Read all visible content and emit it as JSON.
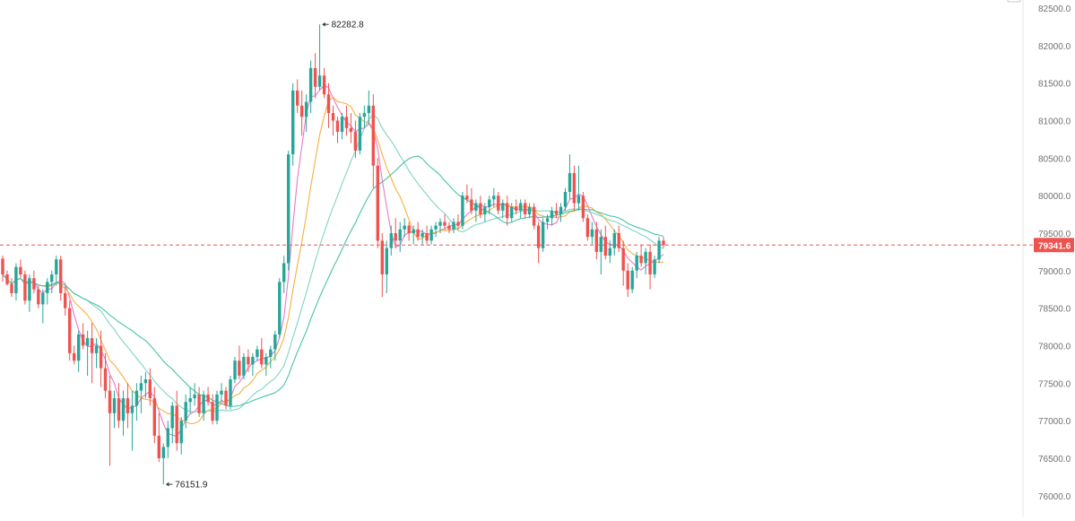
{
  "chart_data": {
    "type": "candlestick",
    "y_axis": {
      "position": "right",
      "ticks": [
        82500.0,
        82000.0,
        81500.0,
        81000.0,
        80500.0,
        80000.0,
        79500.0,
        79000.0,
        78500.0,
        78000.0,
        77500.0,
        77000.0,
        76500.0,
        76000.0
      ],
      "tick_labels": [
        "82500.0",
        "82000.0",
        "81500.0",
        "81000.0",
        "80500.0",
        "80000.0",
        "79500.0",
        "79000.0",
        "78500.0",
        "78000.0",
        "77500.0",
        "77000.0",
        "76500.0",
        "76000.0"
      ],
      "ylim": [
        75950,
        82560
      ]
    },
    "grid": false,
    "current_price": {
      "value": 79341.6,
      "label": "79341.6",
      "line_style": "dashed"
    },
    "high_marker": {
      "value": 82282.8,
      "label": "82282.8"
    },
    "low_marker": {
      "value": 76151.9,
      "label": "76151.9"
    },
    "colors": {
      "up": "#26a69a",
      "down": "#ef5350",
      "price_line": "#ef5350",
      "price_tag": "#ef5350"
    },
    "ma_lines": [
      {
        "color": "#e879c8"
      },
      {
        "color": "#f5b041"
      },
      {
        "color": "#7fd4c4"
      },
      {
        "color": "#45c4a6"
      }
    ],
    "ohlc": [
      [
        79160,
        79200,
        78850,
        78950
      ],
      [
        78950,
        79000,
        78800,
        78820
      ],
      [
        78820,
        78900,
        78650,
        78700
      ],
      [
        78700,
        79100,
        78600,
        79050
      ],
      [
        79050,
        79150,
        78900,
        78950
      ],
      [
        78950,
        79000,
        78550,
        78600
      ],
      [
        78600,
        78950,
        78450,
        78900
      ],
      [
        78900,
        79000,
        78700,
        78750
      ],
      [
        78750,
        78800,
        78500,
        78550
      ],
      [
        78550,
        78750,
        78300,
        78700
      ],
      [
        78700,
        78900,
        78550,
        78850
      ],
      [
        78850,
        79000,
        78700,
        78950
      ],
      [
        78950,
        79200,
        78800,
        79150
      ],
      [
        79150,
        79200,
        78600,
        78700
      ],
      [
        78700,
        78800,
        78400,
        78500
      ],
      [
        78500,
        78600,
        77800,
        77900
      ],
      [
        77900,
        78000,
        77750,
        77800
      ],
      [
        77800,
        78200,
        77650,
        78150
      ],
      [
        78150,
        78300,
        77950,
        78000
      ],
      [
        78000,
        78200,
        77600,
        78100
      ],
      [
        78100,
        78300,
        77500,
        77900
      ],
      [
        77900,
        78100,
        77700,
        78000
      ],
      [
        78000,
        78200,
        77450,
        77700
      ],
      [
        77700,
        77900,
        77300,
        77400
      ],
      [
        77400,
        77600,
        76400,
        77100
      ],
      [
        77100,
        77400,
        76900,
        77300
      ],
      [
        77300,
        77500,
        76900,
        77000
      ],
      [
        77000,
        77400,
        76800,
        77300
      ],
      [
        77300,
        77500,
        76900,
        77100
      ],
      [
        77100,
        77400,
        76600,
        77200
      ],
      [
        77200,
        77500,
        77000,
        77400
      ],
      [
        77400,
        77600,
        77100,
        77500
      ],
      [
        77500,
        77650,
        77300,
        77550
      ],
      [
        77550,
        77700,
        77200,
        77300
      ],
      [
        77300,
        77450,
        76700,
        76800
      ],
      [
        76800,
        77100,
        76450,
        76500
      ],
      [
        76500,
        76700,
        76152,
        76650
      ],
      [
        76650,
        77000,
        76500,
        76900
      ],
      [
        76900,
        77250,
        76700,
        77200
      ],
      [
        77200,
        77400,
        76600,
        76700
      ],
      [
        76700,
        77050,
        76550,
        77000
      ],
      [
        77000,
        77350,
        76900,
        77250
      ],
      [
        77250,
        77450,
        77100,
        77300
      ],
      [
        77300,
        77500,
        77200,
        77350
      ],
      [
        77350,
        77450,
        77050,
        77100
      ],
      [
        77100,
        77400,
        77000,
        77350
      ],
      [
        77350,
        77450,
        77200,
        77250
      ],
      [
        77250,
        77350,
        76950,
        77000
      ],
      [
        77000,
        77400,
        76950,
        77350
      ],
      [
        77350,
        77500,
        77250,
        77400
      ],
      [
        77400,
        77450,
        77150,
        77200
      ],
      [
        77200,
        77600,
        77150,
        77550
      ],
      [
        77550,
        77850,
        77500,
        77800
      ],
      [
        77800,
        78000,
        77550,
        77600
      ],
      [
        77600,
        77900,
        77550,
        77850
      ],
      [
        77850,
        77950,
        77650,
        77750
      ],
      [
        77750,
        77900,
        77600,
        77850
      ],
      [
        77850,
        78000,
        77800,
        77950
      ],
      [
        77950,
        78100,
        77700,
        77750
      ],
      [
        77750,
        77900,
        77600,
        77850
      ],
      [
        77850,
        78000,
        77700,
        77950
      ],
      [
        77950,
        78200,
        77800,
        78150
      ],
      [
        78150,
        78900,
        78100,
        78850
      ],
      [
        78850,
        79200,
        78700,
        79100
      ],
      [
        79100,
        80600,
        79000,
        80550
      ],
      [
        80550,
        81500,
        80400,
        81400
      ],
      [
        81400,
        81550,
        81100,
        81200
      ],
      [
        81200,
        81400,
        80800,
        81050
      ],
      [
        81050,
        81350,
        80850,
        81250
      ],
      [
        81250,
        81800,
        81100,
        81700
      ],
      [
        81700,
        81900,
        81300,
        81450
      ],
      [
        81450,
        82283,
        81400,
        81600
      ],
      [
        81600,
        81700,
        81300,
        81350
      ],
      [
        81350,
        81500,
        80900,
        81100
      ],
      [
        81100,
        81200,
        80800,
        81000
      ],
      [
        81000,
        81050,
        80700,
        80850
      ],
      [
        80850,
        81100,
        80750,
        81050
      ],
      [
        81050,
        81200,
        80800,
        80900
      ],
      [
        80900,
        81100,
        80700,
        80850
      ],
      [
        80850,
        81000,
        80500,
        80600
      ],
      [
        80600,
        81100,
        80550,
        81050
      ],
      [
        81050,
        81200,
        80900,
        81100
      ],
      [
        81100,
        81400,
        80950,
        81200
      ],
      [
        81200,
        81350,
        80100,
        80400
      ],
      [
        80400,
        80500,
        79300,
        79400
      ],
      [
        79400,
        79500,
        78650,
        78950
      ],
      [
        78950,
        79400,
        78700,
        79300
      ],
      [
        79300,
        79600,
        79200,
        79500
      ],
      [
        79500,
        79700,
        79300,
        79400
      ],
      [
        79400,
        79650,
        79250,
        79550
      ],
      [
        79550,
        79700,
        79450,
        79600
      ],
      [
        79600,
        79650,
        79400,
        79500
      ],
      [
        79500,
        79600,
        79350,
        79550
      ],
      [
        79550,
        79650,
        79400,
        79450
      ],
      [
        79450,
        79550,
        79350,
        79500
      ],
      [
        79500,
        79600,
        79350,
        79400
      ],
      [
        79400,
        79600,
        79350,
        79550
      ],
      [
        79550,
        79650,
        79450,
        79600
      ],
      [
        79600,
        79700,
        79500,
        79650
      ],
      [
        79650,
        79750,
        79550,
        79600
      ],
      [
        79600,
        79650,
        79500,
        79550
      ],
      [
        79550,
        79700,
        79500,
        79650
      ],
      [
        79650,
        79750,
        79550,
        79600
      ],
      [
        79600,
        80050,
        79550,
        80000
      ],
      [
        80000,
        80150,
        79900,
        79950
      ],
      [
        79950,
        80100,
        79750,
        79800
      ],
      [
        79800,
        79950,
        79650,
        79900
      ],
      [
        79900,
        80000,
        79700,
        79750
      ],
      [
        79750,
        79900,
        79650,
        79850
      ],
      [
        79850,
        80000,
        79750,
        79950
      ],
      [
        79950,
        80100,
        79850,
        80000
      ],
      [
        80000,
        80050,
        79750,
        79800
      ],
      [
        79800,
        79950,
        79700,
        79900
      ],
      [
        79900,
        80000,
        79600,
        79700
      ],
      [
        79700,
        79900,
        79650,
        79850
      ],
      [
        79850,
        79950,
        79750,
        79800
      ],
      [
        79800,
        79950,
        79700,
        79900
      ],
      [
        79900,
        79950,
        79700,
        79750
      ],
      [
        79750,
        79900,
        79700,
        79850
      ],
      [
        79850,
        79900,
        79550,
        79600
      ],
      [
        79600,
        79650,
        79100,
        79300
      ],
      [
        79300,
        79700,
        79250,
        79650
      ],
      [
        79650,
        79750,
        79550,
        79700
      ],
      [
        79700,
        79850,
        79600,
        79800
      ],
      [
        79800,
        79900,
        79700,
        79750
      ],
      [
        79750,
        79900,
        79650,
        79850
      ],
      [
        79850,
        80100,
        79800,
        80050
      ],
      [
        80050,
        80550,
        79950,
        80300
      ],
      [
        80300,
        80400,
        79800,
        79900
      ],
      [
        79900,
        80400,
        79800,
        80000
      ],
      [
        80000,
        80050,
        79650,
        79700
      ],
      [
        79700,
        79750,
        79400,
        79450
      ],
      [
        79450,
        79650,
        79350,
        79550
      ],
      [
        79550,
        79650,
        79150,
        79250
      ],
      [
        79250,
        79550,
        78950,
        79450
      ],
      [
        79450,
        79600,
        79150,
        79200
      ],
      [
        79200,
        79400,
        79100,
        79300
      ],
      [
        79300,
        79550,
        79200,
        79500
      ],
      [
        79500,
        79600,
        79250,
        79300
      ],
      [
        79300,
        79400,
        78800,
        79000
      ],
      [
        79000,
        79100,
        78650,
        78750
      ],
      [
        78750,
        79050,
        78700,
        79000
      ],
      [
        79000,
        79250,
        78900,
        79200
      ],
      [
        79200,
        79350,
        79050,
        79100
      ],
      [
        79100,
        79300,
        78950,
        79250
      ],
      [
        79250,
        79350,
        78750,
        78950
      ],
      [
        78950,
        79200,
        78900,
        79150
      ],
      [
        79150,
        79450,
        79100,
        79400
      ],
      [
        79400,
        79450,
        79300,
        79342
      ]
    ]
  }
}
